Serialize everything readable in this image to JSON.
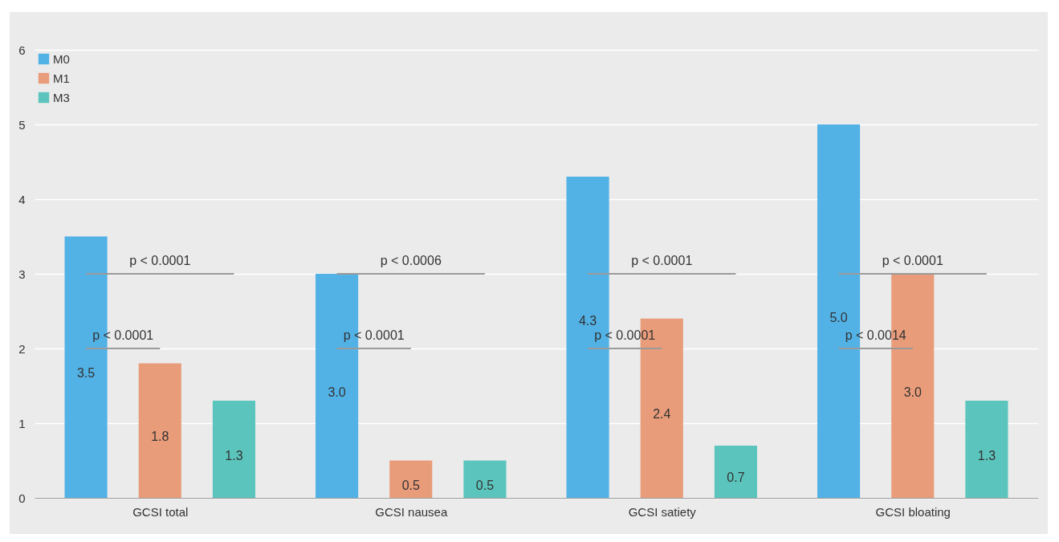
{
  "chart_data": {
    "type": "bar",
    "categories": [
      "GCSI total",
      "GCSI nausea",
      "GCSI satiety",
      "GCSI bloating"
    ],
    "series": [
      {
        "name": "M0",
        "color": "#52b2e6",
        "values": [
          3.5,
          3.0,
          4.3,
          5.0
        ],
        "value_labels": [
          "3.5",
          "3.0",
          "4.3",
          "5.0"
        ]
      },
      {
        "name": "M1",
        "color": "#e99c7a",
        "values": [
          1.8,
          0.5,
          2.4,
          3.0
        ],
        "value_labels": [
          "1.8",
          "0.5",
          "2.4",
          "3.0"
        ]
      },
      {
        "name": "M3",
        "color": "#5bc5bd",
        "values": [
          1.3,
          0.5,
          0.7,
          1.3
        ],
        "value_labels": [
          "1.3",
          "0.5",
          "0.7",
          "1.3"
        ]
      }
    ],
    "ylim": [
      0,
      6
    ],
    "yticks": [
      0,
      1,
      2,
      3,
      4,
      5,
      6
    ],
    "grid": "y",
    "legend": "top left",
    "annotations": [
      "p < 0.0001",
      "p < 0.0001",
      "p < 0.0006",
      "p < 0.0001",
      "p < 0.0001",
      "p < 0.0001",
      "p < 0.0001",
      "p < 0.0014"
    ]
  }
}
